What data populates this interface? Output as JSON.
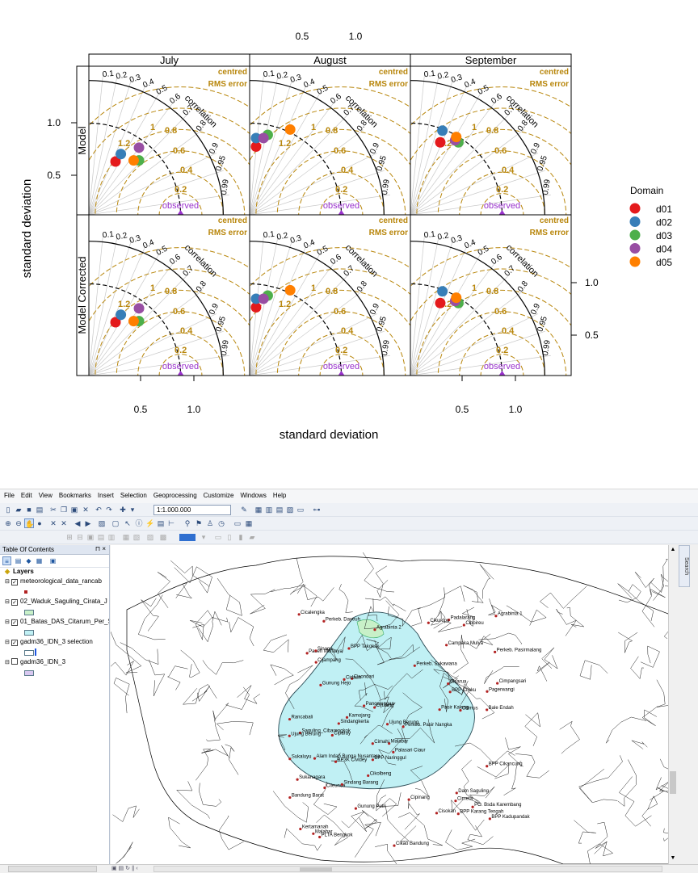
{
  "figure": {
    "top_axis_ticks": [
      "0.5",
      "1.0"
    ],
    "bottom_axis_ticks": [
      "0.5",
      "1.0"
    ],
    "left_axis_ticks": [
      "1.0",
      "0.5"
    ],
    "right_axis_ticks": [
      "1.0",
      "0.5"
    ],
    "xlabel": "standard deviation",
    "ylabel": "standard deviation",
    "columns": [
      "July",
      "August",
      "September"
    ],
    "rows": [
      "Model",
      "Model Corrected"
    ],
    "panel_labels": {
      "centred": "centred",
      "rms_error": "RMS error",
      "correlation": "correlation",
      "observed": "observed",
      "correlation_ticks": [
        "0.1",
        "0.2",
        "0.3",
        "0.4",
        "0.5",
        "0.6",
        "0.7",
        "0.8",
        "0.9",
        "0.95",
        "0.99"
      ],
      "rms_ticks": [
        "1.2",
        "1",
        "0.8",
        "0.6",
        "0.4",
        "0.2"
      ]
    },
    "legend": {
      "title": "Domain",
      "items": [
        {
          "label": "d01",
          "color": "#e41a1c"
        },
        {
          "label": "d02",
          "color": "#377eb8"
        },
        {
          "label": "d03",
          "color": "#4daf4a"
        },
        {
          "label": "d04",
          "color": "#984ea3"
        },
        {
          "label": "d05",
          "color": "#ff7f00"
        }
      ]
    },
    "colors": {
      "rms_arc": "#b8860b",
      "observed": "#9932cc",
      "strip_bg": "#ffffff"
    }
  },
  "chart_data": {
    "type": "scatter",
    "kind": "taylor-diagram",
    "observed_sd": 0.86,
    "panels": [
      {
        "row": "Model",
        "column": "July",
        "points": [
          {
            "domain": "d01",
            "x": 0.25,
            "y": 0.5
          },
          {
            "domain": "d02",
            "x": 0.3,
            "y": 0.57
          },
          {
            "domain": "d03",
            "x": 0.47,
            "y": 0.51
          },
          {
            "domain": "d04",
            "x": 0.47,
            "y": 0.63
          },
          {
            "domain": "d05",
            "x": 0.42,
            "y": 0.51
          }
        ]
      },
      {
        "row": "Model",
        "column": "August",
        "points": [
          {
            "domain": "d01",
            "x": 0.06,
            "y": 0.64
          },
          {
            "domain": "d02",
            "x": 0.06,
            "y": 0.72
          },
          {
            "domain": "d03",
            "x": 0.17,
            "y": 0.75
          },
          {
            "domain": "d04",
            "x": 0.13,
            "y": 0.72
          },
          {
            "domain": "d05",
            "x": 0.38,
            "y": 0.8
          }
        ]
      },
      {
        "row": "Model",
        "column": "September",
        "points": [
          {
            "domain": "d01",
            "x": 0.28,
            "y": 0.68
          },
          {
            "domain": "d02",
            "x": 0.3,
            "y": 0.79
          },
          {
            "domain": "d03",
            "x": 0.45,
            "y": 0.68
          },
          {
            "domain": "d04",
            "x": 0.42,
            "y": 0.7
          },
          {
            "domain": "d05",
            "x": 0.43,
            "y": 0.73
          }
        ]
      },
      {
        "row": "Model Corrected",
        "column": "July",
        "points": [
          {
            "domain": "d01",
            "x": 0.25,
            "y": 0.5
          },
          {
            "domain": "d02",
            "x": 0.3,
            "y": 0.57
          },
          {
            "domain": "d03",
            "x": 0.47,
            "y": 0.51
          },
          {
            "domain": "d04",
            "x": 0.47,
            "y": 0.63
          },
          {
            "domain": "d05",
            "x": 0.42,
            "y": 0.51
          }
        ]
      },
      {
        "row": "Model Corrected",
        "column": "August",
        "points": [
          {
            "domain": "d01",
            "x": 0.06,
            "y": 0.64
          },
          {
            "domain": "d02",
            "x": 0.06,
            "y": 0.72
          },
          {
            "domain": "d03",
            "x": 0.17,
            "y": 0.75
          },
          {
            "domain": "d04",
            "x": 0.13,
            "y": 0.72
          },
          {
            "domain": "d05",
            "x": 0.38,
            "y": 0.8
          }
        ]
      },
      {
        "row": "Model Corrected",
        "column": "September",
        "points": [
          {
            "domain": "d01",
            "x": 0.28,
            "y": 0.68
          },
          {
            "domain": "d02",
            "x": 0.3,
            "y": 0.79
          },
          {
            "domain": "d03",
            "x": 0.45,
            "y": 0.68
          },
          {
            "domain": "d04",
            "x": 0.42,
            "y": 0.7
          },
          {
            "domain": "d05",
            "x": 0.43,
            "y": 0.73
          }
        ]
      }
    ]
  },
  "gis": {
    "menu": [
      "File",
      "Edit",
      "View",
      "Bookmarks",
      "Insert",
      "Selection",
      "Geoprocessing",
      "Customize",
      "Windows",
      "Help"
    ],
    "scale": "1:1.000.000",
    "toc_title": "Table Of Contents",
    "toc_pin": "⊓ ×",
    "layers_group": "Layers",
    "layers": [
      {
        "name": "meteorological_data_rancab",
        "checked": "✓",
        "symbol": "dot",
        "color": "#b22222"
      },
      {
        "name": "02_Waduk_Saguling_Cirata_J",
        "checked": "✓",
        "symbol": "box",
        "color": "#c8f0c8"
      },
      {
        "name": "01_Batas_DAS_Citarum_Per_S",
        "checked": "✓",
        "symbol": "box",
        "color": "#c0f0f4"
      },
      {
        "name": "gadm36_IDN_3 selection",
        "checked": "✓",
        "symbol": "box",
        "color": "#ffffff"
      },
      {
        "name": "gadm36_IDN_3",
        "checked": "",
        "symbol": "box",
        "color": "#d8c8f0"
      }
    ],
    "search_tab": "Search",
    "station_labels": [
      "Cikao Bandung",
      "Gunung Hejo",
      "Gunung Putri",
      "Palasari Ciaur",
      "Malabar",
      "Alam Indah Bunga Nusantara",
      "Cilimus",
      "Cipinang",
      "BPP Karang Tengah",
      "Cimeta",
      "BPP Cilaku",
      "Cisokan",
      "Padalarang",
      "Cimahi",
      "PLTA Bengkok",
      "Saguling_Cibarengkok",
      "Dam Saguling",
      "Ujung Berung",
      "Ujung Berung",
      "Cisondari",
      "Bandung Barat",
      "Bale Endah",
      "Sindangkerta",
      "Paseh Montaya",
      "Ciparay",
      "BPP Cikancung",
      "Cicalengka",
      "Sinaga",
      "Campaka Mulya",
      "BP3K Cividey",
      "Sukanagara",
      "Cimpangsari",
      "Pagerwangi",
      "Kamojang",
      "Rancabali",
      "Perkeb. Pasir Nangka",
      "Cileunca",
      "Malabar",
      "Pangalengan",
      "Kertamanah",
      "Cikurupu",
      "Pasir Kaleng",
      "Cidaun",
      "Perkeb. Pasirmalang",
      "BPP Kadupandak",
      "Cijampang",
      "BPP Naringgul",
      "Agrabinta 2",
      "Agrabinta 1",
      "Sindang Barang",
      "Cijulang",
      "Perkeb. Dayeuh",
      "PO. Bsda Karembang",
      "BPP Takokak",
      "Sukaluyu",
      "Perkeb. Sukawana",
      "Cikolbeng",
      "Ciboireu",
      "Cisarua"
    ]
  }
}
